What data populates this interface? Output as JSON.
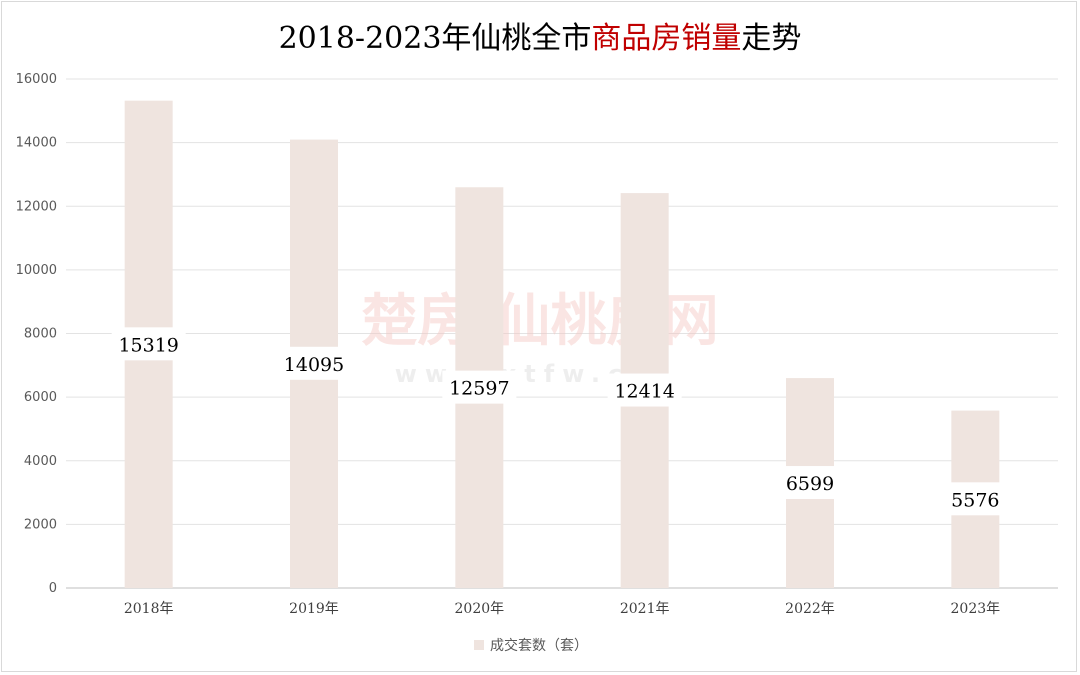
{
  "chart_data": {
    "type": "bar",
    "title_parts": [
      {
        "text": "2018-2023年仙桃全市",
        "color": "#000000"
      },
      {
        "text": "商品房销量",
        "color": "#c00000"
      },
      {
        "text": "走势",
        "color": "#000000"
      }
    ],
    "categories": [
      "2018年",
      "2019年",
      "2020年",
      "2021年",
      "2022年",
      "2023年"
    ],
    "series": [
      {
        "name": "成交套数（套）",
        "values": [
          15319,
          14095,
          12597,
          12414,
          6599,
          5576
        ],
        "color": "#efe4df"
      }
    ],
    "y_ticks": [
      0,
      2000,
      4000,
      6000,
      8000,
      10000,
      12000,
      14000,
      16000
    ],
    "ylim": [
      0,
      16000
    ],
    "grid": true,
    "legend": "bottom",
    "watermark": [
      "楚房·仙桃房网",
      "www.xtfw.cn"
    ]
  }
}
